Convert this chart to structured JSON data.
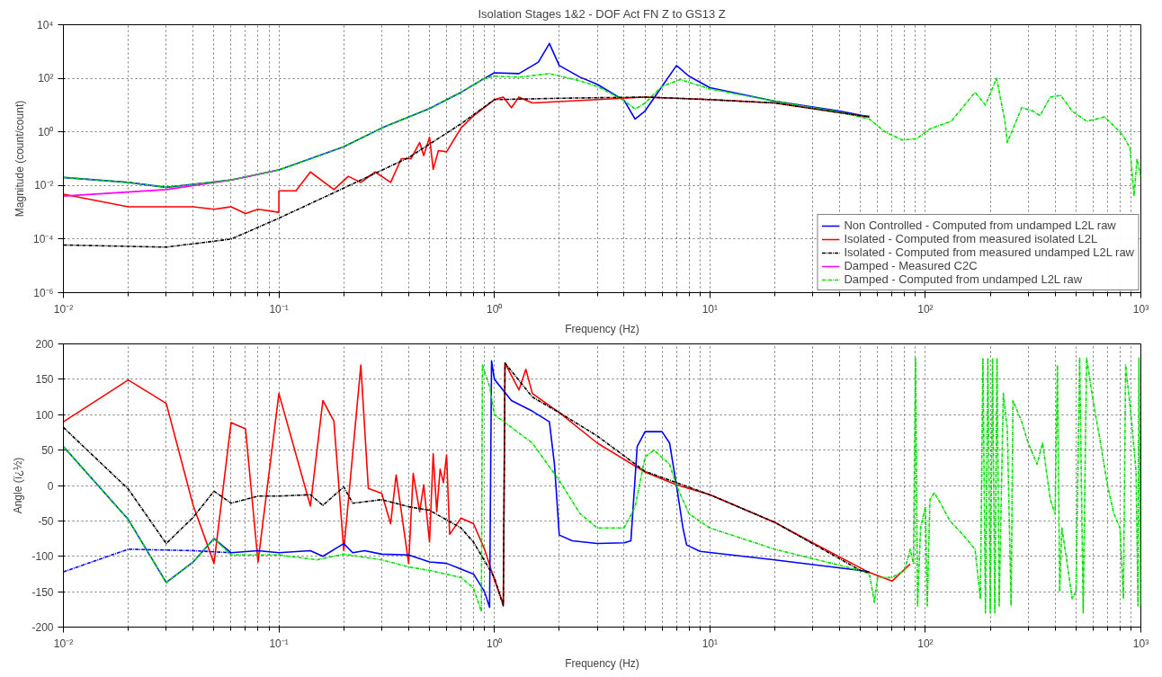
{
  "chart_data": [
    {
      "type": "line",
      "title": "Isolation Stages 1&2 - DOF Act FN Z to GS13 Z",
      "xlabel": "Frequency (Hz)",
      "ylabel": "Magnitude (count/count)",
      "log": "xy",
      "grid": true,
      "legend": "bottom right",
      "xlim": [
        0.01,
        1000
      ],
      "xticks": [
        {
          "value": 0.01,
          "label": "10⁻²"
        },
        {
          "value": 0.1,
          "label": "10⁻¹"
        },
        {
          "value": 1,
          "label": "10⁰"
        },
        {
          "value": 10,
          "label": "10¹"
        },
        {
          "value": 100,
          "label": "10²"
        },
        {
          "value": 1000,
          "label": "10³"
        }
      ],
      "ylim": [
        1e-06,
        10000
      ],
      "yticks": [
        {
          "value": 1e-06,
          "label": "10⁻⁶"
        },
        {
          "value": 0.0001,
          "label": "10⁻⁴"
        },
        {
          "value": 0.01,
          "label": "10⁻²"
        },
        {
          "value": 1,
          "label": "10⁰"
        },
        {
          "value": 100,
          "label": "10²"
        },
        {
          "value": 10000,
          "label": "10⁴"
        }
      ],
      "series": [
        {
          "name": "Non Controlled - Computed from undamped L2L raw",
          "color": "#0000ff",
          "line_style": "solid",
          "x": [
            0.01,
            0.02,
            0.03,
            0.04,
            0.06,
            0.1,
            0.2,
            0.3,
            0.5,
            0.7,
            0.9,
            1.0,
            1.3,
            1.6,
            1.8,
            2.0,
            2.5,
            3,
            4,
            4.5,
            5,
            6,
            7,
            8,
            10,
            20,
            40,
            55
          ],
          "values": [
            0.02,
            0.013,
            0.0085,
            0.011,
            0.016,
            0.038,
            0.28,
            1.4,
            7.4,
            30,
            100,
            160,
            150,
            400,
            2000,
            300,
            110,
            60,
            15,
            3,
            6,
            50,
            300,
            120,
            45,
            14,
            6,
            3.6
          ]
        },
        {
          "name": "Isolated - Computed from measured isolated L2L",
          "color": "#ff0000",
          "line_style": "solid",
          "x": [
            0.01,
            0.02,
            0.04,
            0.05,
            0.06,
            0.07,
            0.08,
            0.1,
            0.1,
            0.12,
            0.14,
            0.18,
            0.21,
            0.24,
            0.28,
            0.33,
            0.37,
            0.41,
            0.45,
            0.47,
            0.5,
            0.52,
            0.55,
            0.6,
            0.7,
            0.8,
            1.0,
            1.1,
            1.2,
            1.3,
            1.5,
            3,
            5,
            10,
            20,
            50,
            55
          ],
          "values": [
            0.0047,
            0.0016,
            0.0016,
            0.0013,
            0.0016,
            0.0009,
            0.0013,
            0.001,
            0.0063,
            0.0063,
            0.032,
            0.007,
            0.022,
            0.013,
            0.032,
            0.013,
            0.1,
            0.1,
            0.4,
            0.13,
            0.63,
            0.04,
            0.2,
            0.18,
            1.4,
            4,
            16,
            20,
            8,
            20,
            12,
            16,
            20,
            16,
            12,
            4,
            3.8
          ]
        },
        {
          "name": "Isolated - Computed from measured undamped L2L raw",
          "color": "#000000",
          "line_style": "dashed",
          "x": [
            0.01,
            0.03,
            0.06,
            0.1,
            0.2,
            0.4,
            0.7,
            1.0,
            2,
            5,
            10,
            20,
            50,
            55
          ],
          "values": [
            6e-05,
            5e-05,
            0.0001,
            0.0006,
            0.008,
            0.11,
            2,
            16,
            18,
            20,
            16,
            12,
            4,
            3.6
          ]
        },
        {
          "name": "Damped - Measured C2C",
          "color": "#ff00ff",
          "line_style": "solid",
          "x": [
            0.01,
            0.03,
            0.06,
            0.1
          ],
          "values": [
            0.004,
            0.007,
            0.016,
            0.038
          ]
        },
        {
          "name": "Damped - Computed from undamped L2L raw",
          "color": "#00e000",
          "line_style": "dashed",
          "x": [
            0.01,
            0.02,
            0.03,
            0.04,
            0.06,
            0.1,
            0.2,
            0.3,
            0.5,
            0.7,
            0.9,
            1.0,
            1.3,
            1.8,
            2.5,
            3,
            4,
            4.5,
            5,
            6,
            7.3,
            10,
            20,
            40,
            55,
            65,
            78,
            91,
            105,
            132,
            170,
            190,
            214,
            234,
            240,
            280,
            316,
            340,
            380,
            425,
            480,
            560,
            680,
            760,
            830,
            890,
            930,
            960,
            1000
          ],
          "values": [
            0.02,
            0.013,
            0.0085,
            0.011,
            0.016,
            0.038,
            0.28,
            1.4,
            7.4,
            30,
            100,
            120,
            110,
            150,
            80,
            50,
            15,
            7,
            12,
            50,
            90,
            40,
            14,
            5.5,
            3,
            1,
            0.5,
            0.55,
            1.3,
            2.5,
            30,
            10,
            100,
            2.5,
            0.4,
            8,
            6,
            4,
            20,
            23,
            6,
            2.5,
            3.6,
            1.5,
            0.7,
            0.25,
            0.004,
            0.1,
            0.02
          ]
        }
      ]
    },
    {
      "type": "line",
      "xlabel": "Frequency (Hz)",
      "ylabel": "Angle (ï¿½)",
      "log": "x",
      "grid": true,
      "xlim": [
        0.01,
        1000
      ],
      "xticks": [
        {
          "value": 0.01,
          "label": "10⁻²"
        },
        {
          "value": 0.1,
          "label": "10⁻¹"
        },
        {
          "value": 1,
          "label": "10⁰"
        },
        {
          "value": 10,
          "label": "10¹"
        },
        {
          "value": 100,
          "label": "10²"
        },
        {
          "value": 1000,
          "label": "10³"
        }
      ],
      "ylim": [
        -200,
        200
      ],
      "yticks": [
        -200,
        -150,
        -100,
        -50,
        0,
        50,
        100,
        150,
        200
      ],
      "series": [
        {
          "color": "#0000ff",
          "line_style": "dashed",
          "x": [
            0.01,
            0.02,
            0.04,
            0.06
          ],
          "values": [
            -122,
            -90,
            -92,
            -95
          ]
        },
        {
          "color": "#ff0000",
          "line_style": "solid",
          "x": [
            0.01,
            0.02,
            0.03,
            0.04,
            0.05,
            0.06,
            0.07,
            0.08,
            0.1,
            0.14,
            0.16,
            0.18,
            0.2,
            0.24,
            0.26,
            0.3,
            0.33,
            0.35,
            0.4,
            0.42,
            0.45,
            0.47,
            0.5,
            0.52,
            0.54,
            0.56,
            0.58,
            0.6,
            0.62,
            0.7,
            0.8,
            0.9,
            1.0,
            1.1,
            1.12,
            1.3,
            1.4,
            1.5,
            2,
            3,
            5,
            7,
            10,
            20,
            30,
            55,
            70,
            85
          ],
          "values": [
            90,
            149,
            116,
            -28,
            -110,
            89,
            80,
            -108,
            130,
            -29,
            120,
            91,
            -92,
            170,
            -4,
            -11,
            -54,
            15,
            -110,
            17,
            -37,
            1,
            -80,
            45,
            -37,
            23,
            4,
            43,
            -69,
            -46,
            -54,
            -90,
            -133,
            -168,
            173,
            135,
            164,
            130,
            103,
            60,
            19,
            1,
            -13,
            -52,
            -81,
            -123,
            -135,
            -111
          ]
        },
        {
          "color": "#000000",
          "line_style": "dashed",
          "x": [
            0.01,
            0.02,
            0.03,
            0.04,
            0.05,
            0.06,
            0.08,
            0.1,
            0.14,
            0.16,
            0.2,
            0.22,
            0.3,
            0.4,
            0.5,
            0.7,
            0.8,
            1.0,
            1.1,
            1.12,
            1.5,
            2,
            3,
            5,
            10,
            20,
            50,
            55
          ],
          "values": [
            82,
            -5,
            -82,
            -45,
            -8,
            -25,
            -15,
            -15,
            -13,
            -28,
            -2,
            -25,
            -20,
            -30,
            -35,
            -60,
            -80,
            -130,
            -170,
            173,
            125,
            103,
            70,
            20,
            -13,
            -52,
            -120,
            -123
          ]
        },
        {
          "color": "#0000ff",
          "line_style": "solid",
          "x": [
            0.01,
            0.02,
            0.03,
            0.04,
            0.05,
            0.06,
            0.08,
            0.1,
            0.14,
            0.16,
            0.2,
            0.22,
            0.25,
            0.3,
            0.4,
            0.5,
            0.6,
            0.8,
            0.9,
            0.95,
            0.97,
            1.0,
            1.2,
            1.5,
            1.8,
            1.9,
            2.0,
            2.3,
            3,
            4,
            4.3,
            4.6,
            5,
            6,
            6.5,
            7,
            7.5,
            7.8,
            9,
            20,
            50,
            55
          ],
          "values": [
            55,
            -48,
            -137,
            -108,
            -75,
            -95,
            -92,
            -95,
            -92,
            -100,
            -82,
            -95,
            -92,
            -97,
            -98,
            -108,
            -110,
            -125,
            -150,
            -172,
            176,
            150,
            120,
            105,
            90,
            30,
            -70,
            -78,
            -82,
            -81,
            -78,
            55,
            76,
            76,
            60,
            0,
            -60,
            -84,
            -93,
            -105,
            -120,
            -122
          ]
        },
        {
          "color": "#00e000",
          "line_style": "dashed",
          "x": [
            0.01,
            0.02,
            0.03,
            0.04,
            0.05,
            0.06,
            0.1,
            0.15,
            0.2,
            0.3,
            0.4,
            0.5,
            0.7,
            0.8,
            0.87,
            0.88,
            0.95,
            1.0,
            1.5,
            2.0,
            2.5,
            3.0,
            4.0,
            4.5,
            5,
            5.5,
            6.5,
            7,
            8,
            10,
            20,
            50,
            55,
            58,
            60,
            70,
            80,
            85,
            88,
            90,
            92,
            95,
            100,
            102,
            105,
            110,
            120,
            130,
            150,
            170,
            180,
            185,
            190,
            195,
            200,
            205,
            210,
            215,
            220,
            230,
            240,
            250,
            255,
            280,
            300,
            330,
            350,
            380,
            400,
            410,
            420,
            430,
            450,
            480,
            500,
            520,
            540,
            560,
            600,
            650,
            700,
            750,
            800,
            830,
            850,
            900,
            950,
            970,
            980,
            1000
          ],
          "values": [
            55,
            -48,
            -137,
            -108,
            -75,
            -98,
            -98,
            -105,
            -97,
            -105,
            -115,
            -120,
            -130,
            -145,
            -178,
            170,
            140,
            100,
            60,
            7,
            -40,
            -60,
            -60,
            -30,
            40,
            50,
            30,
            0,
            -40,
            -60,
            -90,
            -120,
            -125,
            -165,
            -130,
            -130,
            -120,
            -90,
            -110,
            180,
            -170,
            -60,
            -30,
            -170,
            -20,
            -10,
            -30,
            -50,
            -70,
            -90,
            -160,
            180,
            -180,
            180,
            -180,
            180,
            -180,
            180,
            -170,
            130,
            80,
            -170,
            120,
            90,
            60,
            30,
            60,
            -20,
            -40,
            170,
            -150,
            -60,
            -100,
            -160,
            -150,
            180,
            -180,
            180,
            120,
            60,
            0,
            -40,
            -60,
            -160,
            170,
            100,
            20,
            -170,
            180,
            -170
          ]
        }
      ]
    }
  ]
}
